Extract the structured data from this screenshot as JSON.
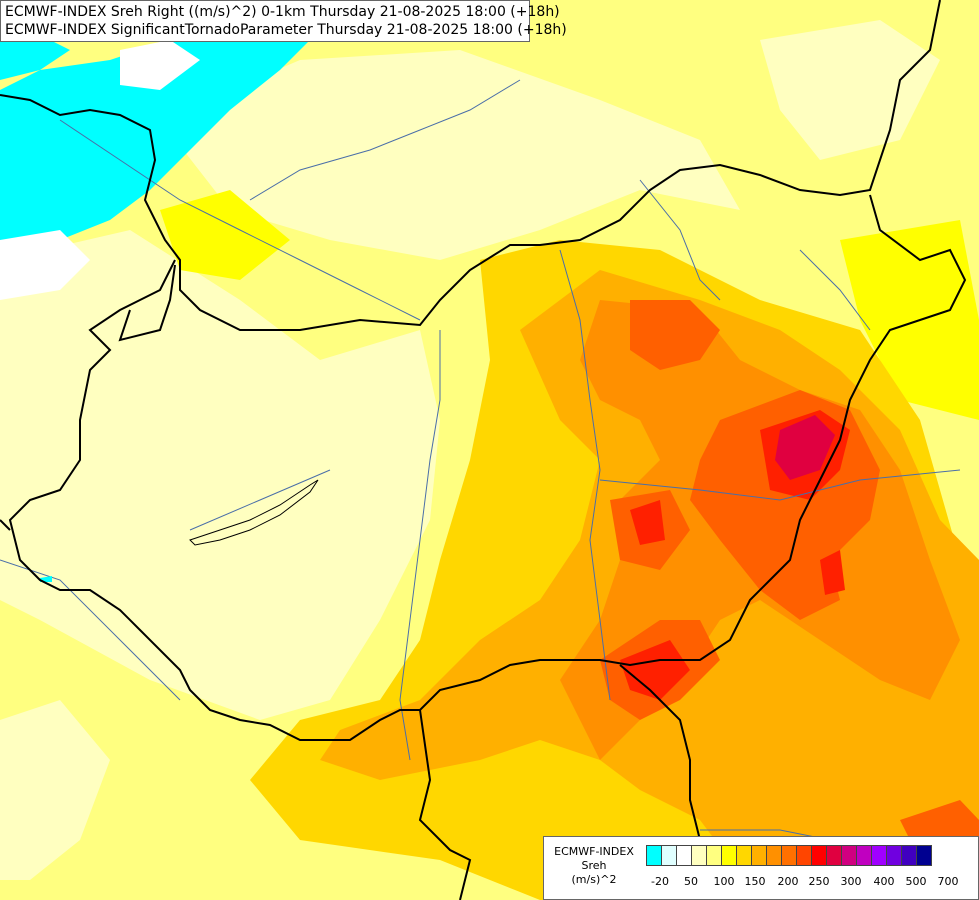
{
  "title": {
    "line1": "ECMWF-INDEX Sreh Right ((m/s)^2) 0-1km Thursday 21-08-2025 18:00 (+18h)",
    "line2": "ECMWF-INDEX SignificantTornadoParameter Thursday 21-08-2025 18:00 (+18h)"
  },
  "legend": {
    "line1": "ECMWF-INDEX",
    "line2": "Sreh",
    "line3": "(m/s)^2",
    "colors": [
      "#00ffff",
      "#e0ffff",
      "#ffffff",
      "#ffffc0",
      "#ffff80",
      "#ffff00",
      "#ffd700",
      "#ffb000",
      "#ff9000",
      "#ff7000",
      "#ff4500",
      "#ff0000",
      "#e00040",
      "#d00080",
      "#c000c0",
      "#a000ff",
      "#7000e0",
      "#4000c0",
      "#000090"
    ],
    "ticks": [
      "-20",
      "50",
      "100",
      "150",
      "200",
      "250",
      "300",
      "400",
      "500",
      "700"
    ]
  },
  "palette": {
    "cyan": "#00ffff",
    "white": "#ffffff",
    "pale_yellow": "#ffffc0",
    "light_yellow": "#ffff80",
    "yellow": "#ffff00",
    "gold": "#ffd700",
    "orange": "#ffb000",
    "dark_orange": "#ff9000",
    "red_orange": "#ff6000",
    "red": "#ff2000",
    "crimson": "#e00040",
    "border": "#000000",
    "river": "#4a6ea8"
  }
}
